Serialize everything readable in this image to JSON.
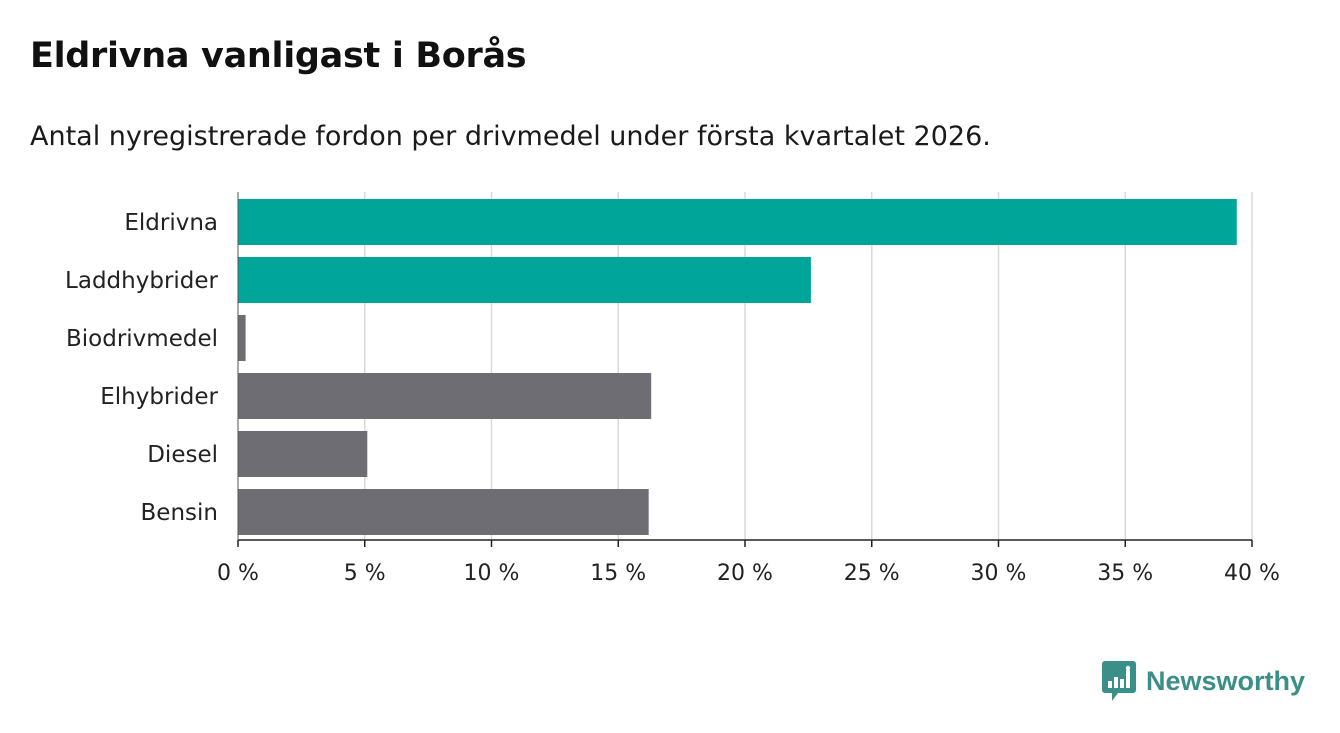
{
  "chart_data": {
    "type": "bar",
    "orientation": "horizontal",
    "title": "Eldrivna vanligast i Borås",
    "subtitle": "Antal nyregistrerade fordon per drivmedel under första kvartalet 2026.",
    "categories": [
      "Eldrivna",
      "Laddhybrider",
      "Biodrivmedel",
      "Elhybrider",
      "Diesel",
      "Bensin"
    ],
    "values": [
      39.4,
      22.6,
      0.3,
      16.3,
      5.1,
      16.2
    ],
    "colors": [
      "#00a59a",
      "#00a59a",
      "#6e6d73",
      "#6e6d73",
      "#6e6d73",
      "#6e6d73"
    ],
    "xlim": [
      0,
      40
    ],
    "xticks": [
      0,
      5,
      10,
      15,
      20,
      25,
      30,
      35,
      40
    ],
    "xtick_labels": [
      "0 %",
      "5 %",
      "10 %",
      "15 %",
      "20 %",
      "25 %",
      "30 %",
      "35 %",
      "40 %"
    ],
    "grid": true,
    "xlabel": "",
    "ylabel": ""
  },
  "brand": {
    "name": "Newsworthy",
    "icon": "bar-chart-logo-icon",
    "color": "#3a8f88"
  }
}
